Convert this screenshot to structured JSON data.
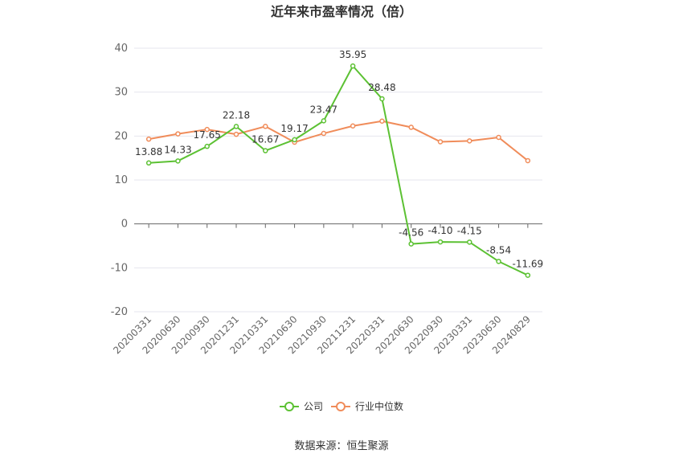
{
  "chart_data": {
    "type": "line",
    "title": "近年来市盈率情况（倍）",
    "xlabel": "",
    "ylabel": "",
    "ylim": [
      -20,
      40
    ],
    "yticks": [
      40,
      30,
      20,
      10,
      0,
      -10,
      -20
    ],
    "grid": true,
    "legend_position": "bottom",
    "categories": [
      "20200331",
      "20200630",
      "20200930",
      "20201231",
      "20210331",
      "20210630",
      "20210930",
      "20211231",
      "20220331",
      "20220630",
      "20220930",
      "20230331",
      "20230630",
      "20240829"
    ],
    "series": [
      {
        "name": "公司",
        "color": "#5cc133",
        "values": [
          13.88,
          14.33,
          17.65,
          22.18,
          16.67,
          19.17,
          23.47,
          35.95,
          28.48,
          -4.56,
          -4.1,
          -4.15,
          -8.54,
          -11.69
        ],
        "labels": [
          "13.88",
          "14.33",
          "17.65",
          "22.18",
          "16.67",
          "19.17",
          "23.47",
          "35.95",
          "28.48",
          "-4.56",
          "-4.10",
          "-4.15",
          "-8.54",
          "-11.69"
        ]
      },
      {
        "name": "行业中位数",
        "color": "#f08c5a",
        "values": [
          19.3,
          20.5,
          21.5,
          20.4,
          22.2,
          18.6,
          20.6,
          22.3,
          23.4,
          22.0,
          18.7,
          18.9,
          19.7,
          14.4
        ]
      }
    ]
  },
  "source_text": "数据来源：恒生聚源"
}
